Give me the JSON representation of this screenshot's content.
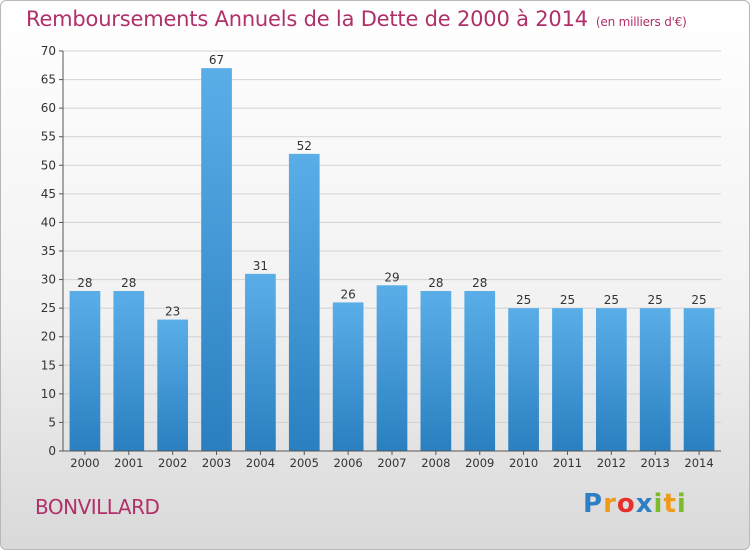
{
  "header": {
    "title": "Remboursements Annuels de la Dette de 2000 à 2014",
    "unit": "(en milliers d'€)"
  },
  "footer": {
    "commune": "BONVILLARD",
    "brand": "Proxiti",
    "brand_letters": [
      {
        "ch": "P",
        "color": "#2e7fc4"
      },
      {
        "ch": "r",
        "color": "#f09a1a"
      },
      {
        "ch": "o",
        "color": "#e8302a"
      },
      {
        "ch": "x",
        "color": "#2e7fc4"
      },
      {
        "ch": "i",
        "color": "#7dbb2a"
      },
      {
        "ch": "t",
        "color": "#f09a1a"
      },
      {
        "ch": "i",
        "color": "#7dbb2a"
      }
    ]
  },
  "chart_data": {
    "type": "bar",
    "title": "Remboursements Annuels de la Dette de 2000 à 2014",
    "categories": [
      "2000",
      "2001",
      "2002",
      "2003",
      "2004",
      "2005",
      "2006",
      "2007",
      "2008",
      "2009",
      "2010",
      "2011",
      "2012",
      "2013",
      "2014"
    ],
    "values": [
      28,
      28,
      23,
      67,
      31,
      52,
      26,
      29,
      28,
      28,
      25,
      25,
      25,
      25,
      25
    ],
    "ylim": [
      0,
      70
    ],
    "yticks": [
      0,
      5,
      10,
      15,
      20,
      25,
      30,
      35,
      40,
      45,
      50,
      55,
      60,
      65,
      70
    ],
    "grid": true,
    "bar_color_top": "#5aaee8",
    "bar_color_bottom": "#2a7fc0",
    "text_color": "#b0306a"
  }
}
